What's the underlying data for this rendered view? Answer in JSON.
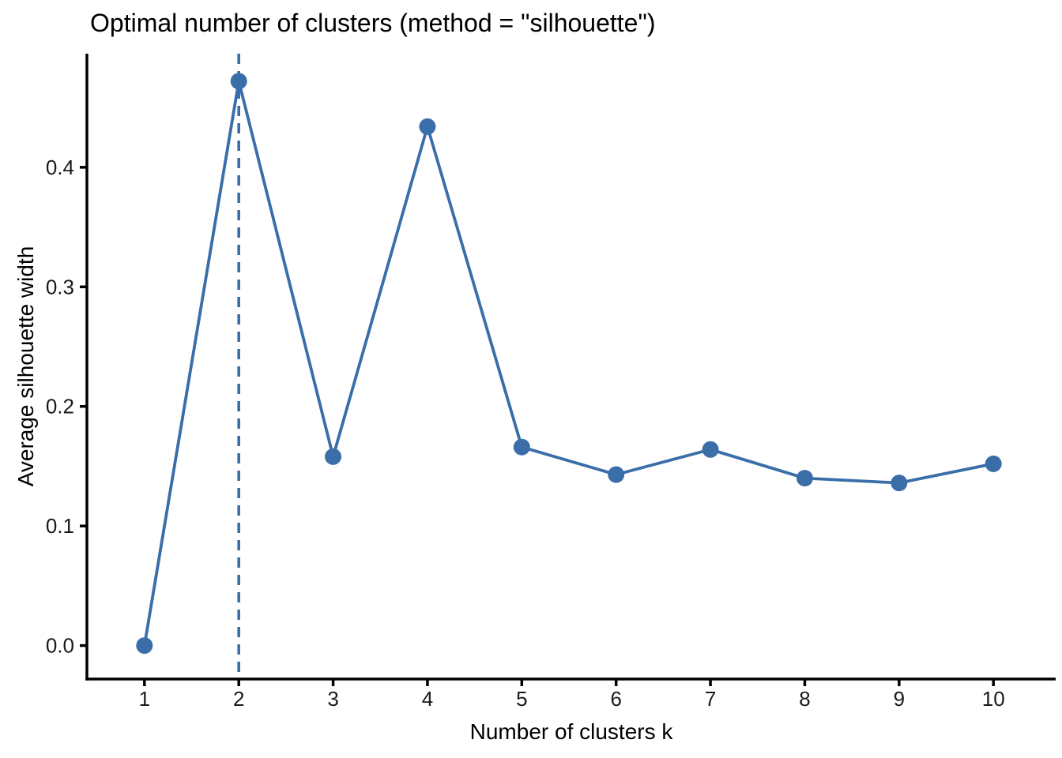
{
  "chart_data": {
    "type": "line",
    "title": "Optimal number of clusters (method = \"silhouette\")",
    "xlabel": "Number of clusters k",
    "ylabel": "Average silhouette width",
    "x": [
      1,
      2,
      3,
      4,
      5,
      6,
      7,
      8,
      9,
      10
    ],
    "x_tick_labels": [
      "1",
      "2",
      "3",
      "4",
      "5",
      "6",
      "7",
      "8",
      "9",
      "10"
    ],
    "values": [
      0.0,
      0.472,
      0.158,
      0.434,
      0.166,
      0.143,
      0.164,
      0.14,
      0.136,
      0.152
    ],
    "y_ticks": [
      0.0,
      0.1,
      0.2,
      0.3,
      0.4
    ],
    "y_tick_labels": [
      "0.0",
      "0.1",
      "0.2",
      "0.3",
      "0.4"
    ],
    "optimal_k": 2,
    "vline_at_x": 2,
    "vline_style": "dashed",
    "xlim": [
      0.39,
      10.66
    ],
    "ylim": [
      -0.028,
      0.495
    ],
    "grid": false,
    "legend": "none",
    "series_name": "average silhouette width",
    "colors": {
      "line": "#3A6EA8",
      "point": "#3A6EA8",
      "vline": "#3A6EA8",
      "axis": "#000000",
      "text": "#1A1A1A"
    }
  }
}
